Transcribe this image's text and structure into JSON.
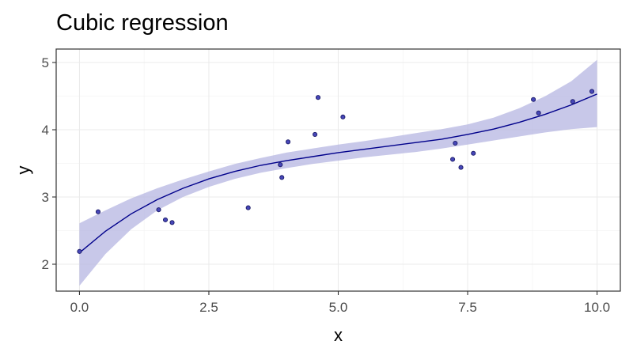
{
  "chart_data": {
    "type": "scatter",
    "title": "Cubic regression",
    "xlabel": "x",
    "ylabel": "y",
    "xlim": [
      -0.45,
      10.45
    ],
    "ylim": [
      1.6,
      5.2
    ],
    "x_ticks": [
      0,
      2.5,
      5,
      7.5,
      10
    ],
    "x_tick_labels": [
      "0.0",
      "2.5",
      "5.0",
      "7.5",
      "10.0"
    ],
    "x_minor": [
      1.25,
      3.75,
      6.25,
      8.75
    ],
    "y_ticks": [
      2,
      3,
      4,
      5
    ],
    "y_tick_labels": [
      "2",
      "3",
      "4",
      "5"
    ],
    "y_minor": [
      1.5,
      2.5,
      3.5,
      4.5
    ],
    "grid": true,
    "colors": {
      "points_fill": "#4747b8",
      "points_stroke": "#1a1a66",
      "fit_line": "#00008b",
      "band_fill": "#b3b3e0"
    },
    "points": {
      "x": [
        0.0,
        0.36,
        1.53,
        1.66,
        1.79,
        3.26,
        3.88,
        3.91,
        4.03,
        4.55,
        4.61,
        5.09,
        7.21,
        7.26,
        7.37,
        7.61,
        8.77,
        8.87,
        9.53,
        9.9
      ],
      "y": [
        2.19,
        2.78,
        2.81,
        2.66,
        2.62,
        2.84,
        3.48,
        3.29,
        3.82,
        3.93,
        4.48,
        4.19,
        3.56,
        3.8,
        3.44,
        3.65,
        4.45,
        4.25,
        4.42,
        4.57
      ]
    },
    "fit": {
      "x": [
        0.0,
        0.5,
        1.0,
        1.5,
        2.0,
        2.5,
        3.0,
        3.5,
        4.0,
        4.5,
        5.0,
        5.5,
        6.0,
        6.5,
        7.0,
        7.5,
        8.0,
        8.5,
        9.0,
        9.5,
        10.0
      ],
      "y": [
        2.17,
        2.49,
        2.75,
        2.96,
        3.13,
        3.27,
        3.38,
        3.47,
        3.54,
        3.6,
        3.66,
        3.71,
        3.76,
        3.81,
        3.86,
        3.93,
        4.01,
        4.11,
        4.23,
        4.37,
        4.53
      ],
      "lower": [
        1.68,
        2.15,
        2.52,
        2.8,
        3.0,
        3.15,
        3.27,
        3.36,
        3.43,
        3.49,
        3.54,
        3.59,
        3.63,
        3.67,
        3.72,
        3.78,
        3.84,
        3.9,
        3.96,
        4.01,
        4.04
      ],
      "upper": [
        2.61,
        2.8,
        2.98,
        3.13,
        3.26,
        3.38,
        3.49,
        3.58,
        3.66,
        3.72,
        3.78,
        3.83,
        3.89,
        3.95,
        4.01,
        4.08,
        4.18,
        4.32,
        4.5,
        4.72,
        5.04
      ]
    }
  }
}
